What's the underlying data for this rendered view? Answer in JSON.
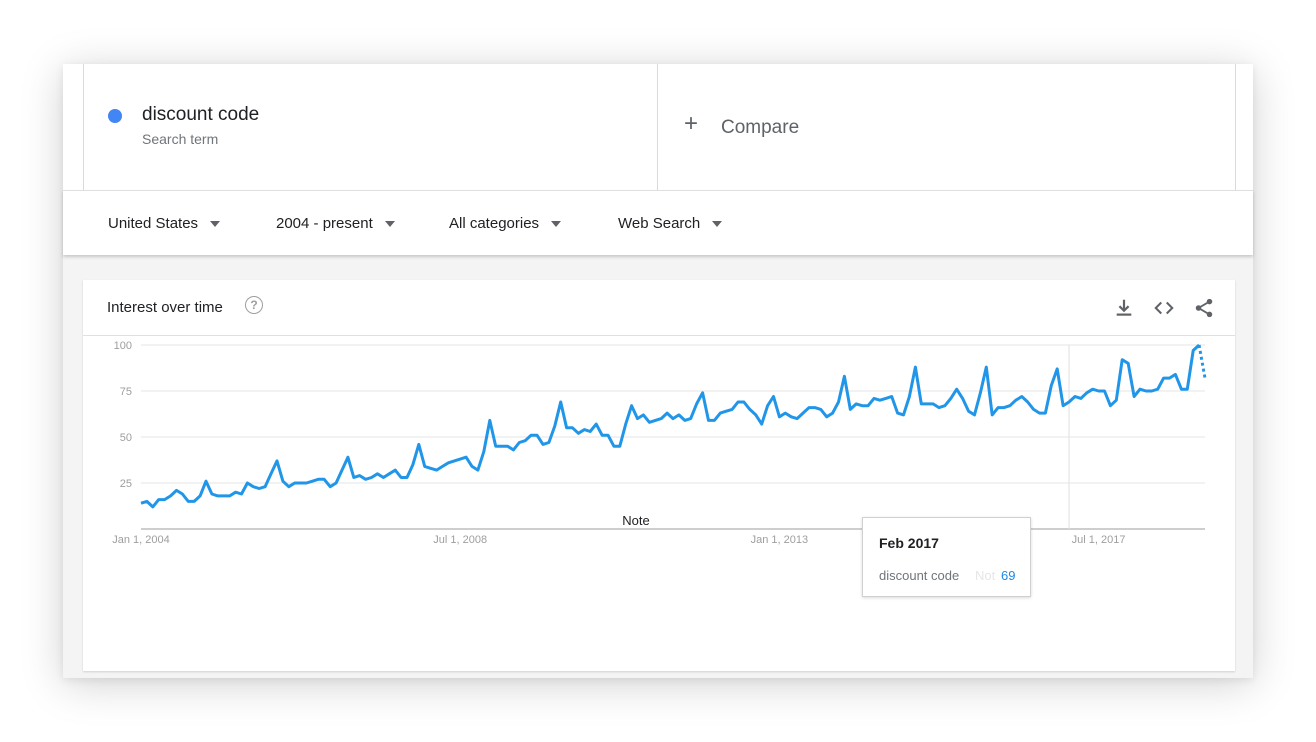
{
  "search_terms": {
    "term": {
      "label": "discount code",
      "sublabel": "Search term",
      "color": "#4285f4"
    },
    "compare": {
      "plus": "+",
      "label": "Compare"
    }
  },
  "filters": [
    {
      "label": "United States"
    },
    {
      "label": "2004 - present"
    },
    {
      "label": "All categories"
    },
    {
      "label": "Web Search"
    }
  ],
  "card": {
    "title": "Interest over time",
    "help_icon": "?",
    "icons": [
      "download-icon",
      "embed-code-icon",
      "share-icon"
    ]
  },
  "tooltip": {
    "date": "Feb 2017",
    "term": "discount code",
    "note": "Not",
    "value": "69"
  },
  "chart_data": {
    "type": "line",
    "series_color": "#2196e8",
    "y_ticks": [
      25,
      50,
      75,
      100
    ],
    "ylim": [
      0,
      100
    ],
    "x_labels": [
      "Jan 1, 2004",
      "Jul 1, 2008",
      "Jan 1, 2013",
      "Jul 1, 2017"
    ],
    "note_label": "Note",
    "x_start": "2004-01",
    "hover_date": "2017-02",
    "partial_last_point": true,
    "values": [
      14,
      15,
      12,
      16,
      16,
      18,
      21,
      19,
      15,
      15,
      18,
      26,
      19,
      18,
      18,
      18,
      20,
      19,
      25,
      23,
      22,
      23,
      30,
      37,
      26,
      23,
      25,
      25,
      25,
      26,
      27,
      27,
      23,
      25,
      32,
      39,
      28,
      29,
      27,
      28,
      30,
      28,
      30,
      32,
      28,
      28,
      35,
      46,
      34,
      33,
      32,
      34,
      36,
      37,
      38,
      39,
      34,
      32,
      42,
      59,
      45,
      45,
      45,
      43,
      47,
      48,
      51,
      51,
      46,
      47,
      56,
      69,
      55,
      55,
      52,
      54,
      53,
      57,
      51,
      51,
      45,
      45,
      57,
      67,
      60,
      62,
      58,
      59,
      60,
      63,
      60,
      62,
      59,
      60,
      68,
      74,
      59,
      59,
      63,
      64,
      65,
      69,
      69,
      65,
      62,
      57,
      67,
      72,
      61,
      63,
      61,
      60,
      63,
      66,
      66,
      65,
      61,
      63,
      69,
      83,
      65,
      68,
      67,
      67,
      71,
      70,
      71,
      72,
      63,
      62,
      72,
      88,
      68,
      68,
      68,
      66,
      67,
      71,
      76,
      71,
      64,
      62,
      74,
      88,
      62,
      66,
      66,
      67,
      70,
      72,
      69,
      65,
      63,
      63,
      78,
      87,
      67,
      69,
      72,
      71,
      74,
      76,
      75,
      75,
      67,
      70,
      92,
      90,
      72,
      76,
      75,
      75,
      76,
      82,
      82,
      84,
      76,
      76,
      97,
      100,
      82
    ]
  }
}
